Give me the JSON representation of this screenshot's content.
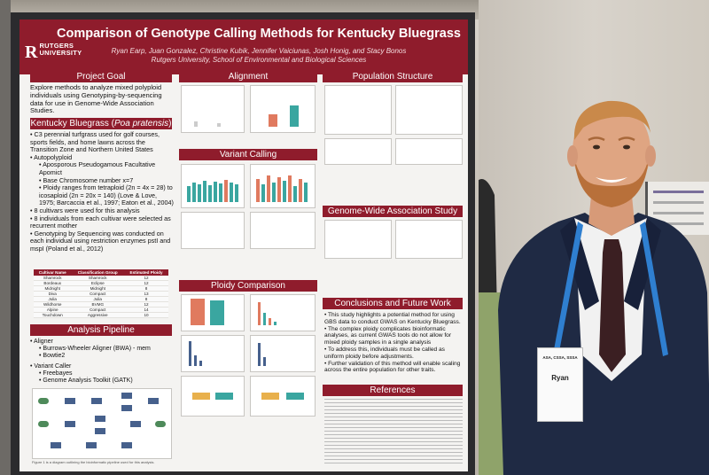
{
  "poster": {
    "logo_letter": "R",
    "logo_line1": "RUTGERS",
    "logo_line2": "UNIVERSITY",
    "title": "Comparison of Genotype Calling Methods for Kentucky Bluegrass",
    "authors": "Ryan Earp, Juan Gonzalez, Christine Kubik, Jennifer Vaiciunas, Josh Honig, and Stacy Bonos",
    "affiliation": "Rutgers University, School of Environmental and Biological Sciences"
  },
  "goal": {
    "heading": "Project Goal",
    "text": "Explore methods to analyze mixed polyploid individuals using Genotyping-by-sequencing data for use in Genome-Wide Association Studies."
  },
  "kbg": {
    "heading_main": "Kentucky Bluegrass (",
    "heading_italic": "Poa pratensis",
    "heading_end": ")",
    "bullets": [
      "C3 perennial turfgrass used for golf courses, sports fields, and home lawns across the Transition Zone and Northern United States",
      "Autopolyploid",
      "Aposporous Pseudogamous Facultative Apomict",
      "Base Chromosome number x=7",
      "Ploidy ranges from tetraploid (2n = 4x = 28) to icosaploid (2n = 20x = 140) (Love & Love, 1975; Barcaccia et al., 1997; Eaton et al., 2004)",
      "8 cultivars were used for this analysis",
      "8 individuals from each cultivar were selected as recurrent mother",
      "Genotyping by Sequencing was conducted on each individual using restriction enzymes pstI and mspI (Poland et al., 2012)"
    ]
  },
  "cultivar_table": {
    "headers": [
      "Cultivar Name",
      "Classification Group",
      "Estimated Ploidy"
    ],
    "rows": [
      [
        "Shamrock",
        "Shamrock",
        "12"
      ],
      [
        "Bordeaux",
        "Eclipse",
        "12"
      ],
      [
        "Midnight",
        "Midnight",
        "8"
      ],
      [
        "Diva",
        "Compact",
        "13"
      ],
      [
        "Julia",
        "Julia",
        "8"
      ],
      [
        "Wildhorse",
        "BVMG",
        "12"
      ],
      [
        "Alpine",
        "Compact",
        "14"
      ],
      [
        "Touchdown",
        "Aggressive",
        "10"
      ]
    ]
  },
  "pipeline": {
    "heading": "Analysis Pipeline",
    "lines": [
      "Aligner",
      "Burrows-Wheeler Aligner (BWA) - mem",
      "Bowtie2",
      "Variant Caller",
      "Freebayes",
      "Genome Analysis Toolkit (GATK)"
    ],
    "caption": "Figure 1 is a diagram outlining the bioinformatic pipeline used for this analysis."
  },
  "middle": {
    "alignment": "Alignment",
    "variant_calling": "Variant Calling",
    "ploidy": "Ploidy Comparison"
  },
  "right": {
    "population": "Population Structure",
    "gwas": "Genome-Wide Association Study",
    "conclusions_heading": "Conclusions and Future Work",
    "conclusions": [
      "This study highlights a potential method for using GBS data to conduct GWAS on Kentucky Bluegrass.",
      "The complex ploidy complicates bioinformatic analyses, as current GWAS tools do not allow for mixed ploidy samples in a single analysis",
      "To address this, individuals must be called as uniform ploidy before adjustments.",
      "Further validation of this method will enable scaling across the entire population for other traits."
    ],
    "references": "References"
  },
  "badge": {
    "name": "Ryan",
    "role": "ASA, CSSA, SSSA"
  },
  "colors": {
    "rutgers_red": "#8f1c2c",
    "board": "#2b2b2e",
    "suit": "#1f2a44",
    "lanyard": "#2f7fd0"
  }
}
